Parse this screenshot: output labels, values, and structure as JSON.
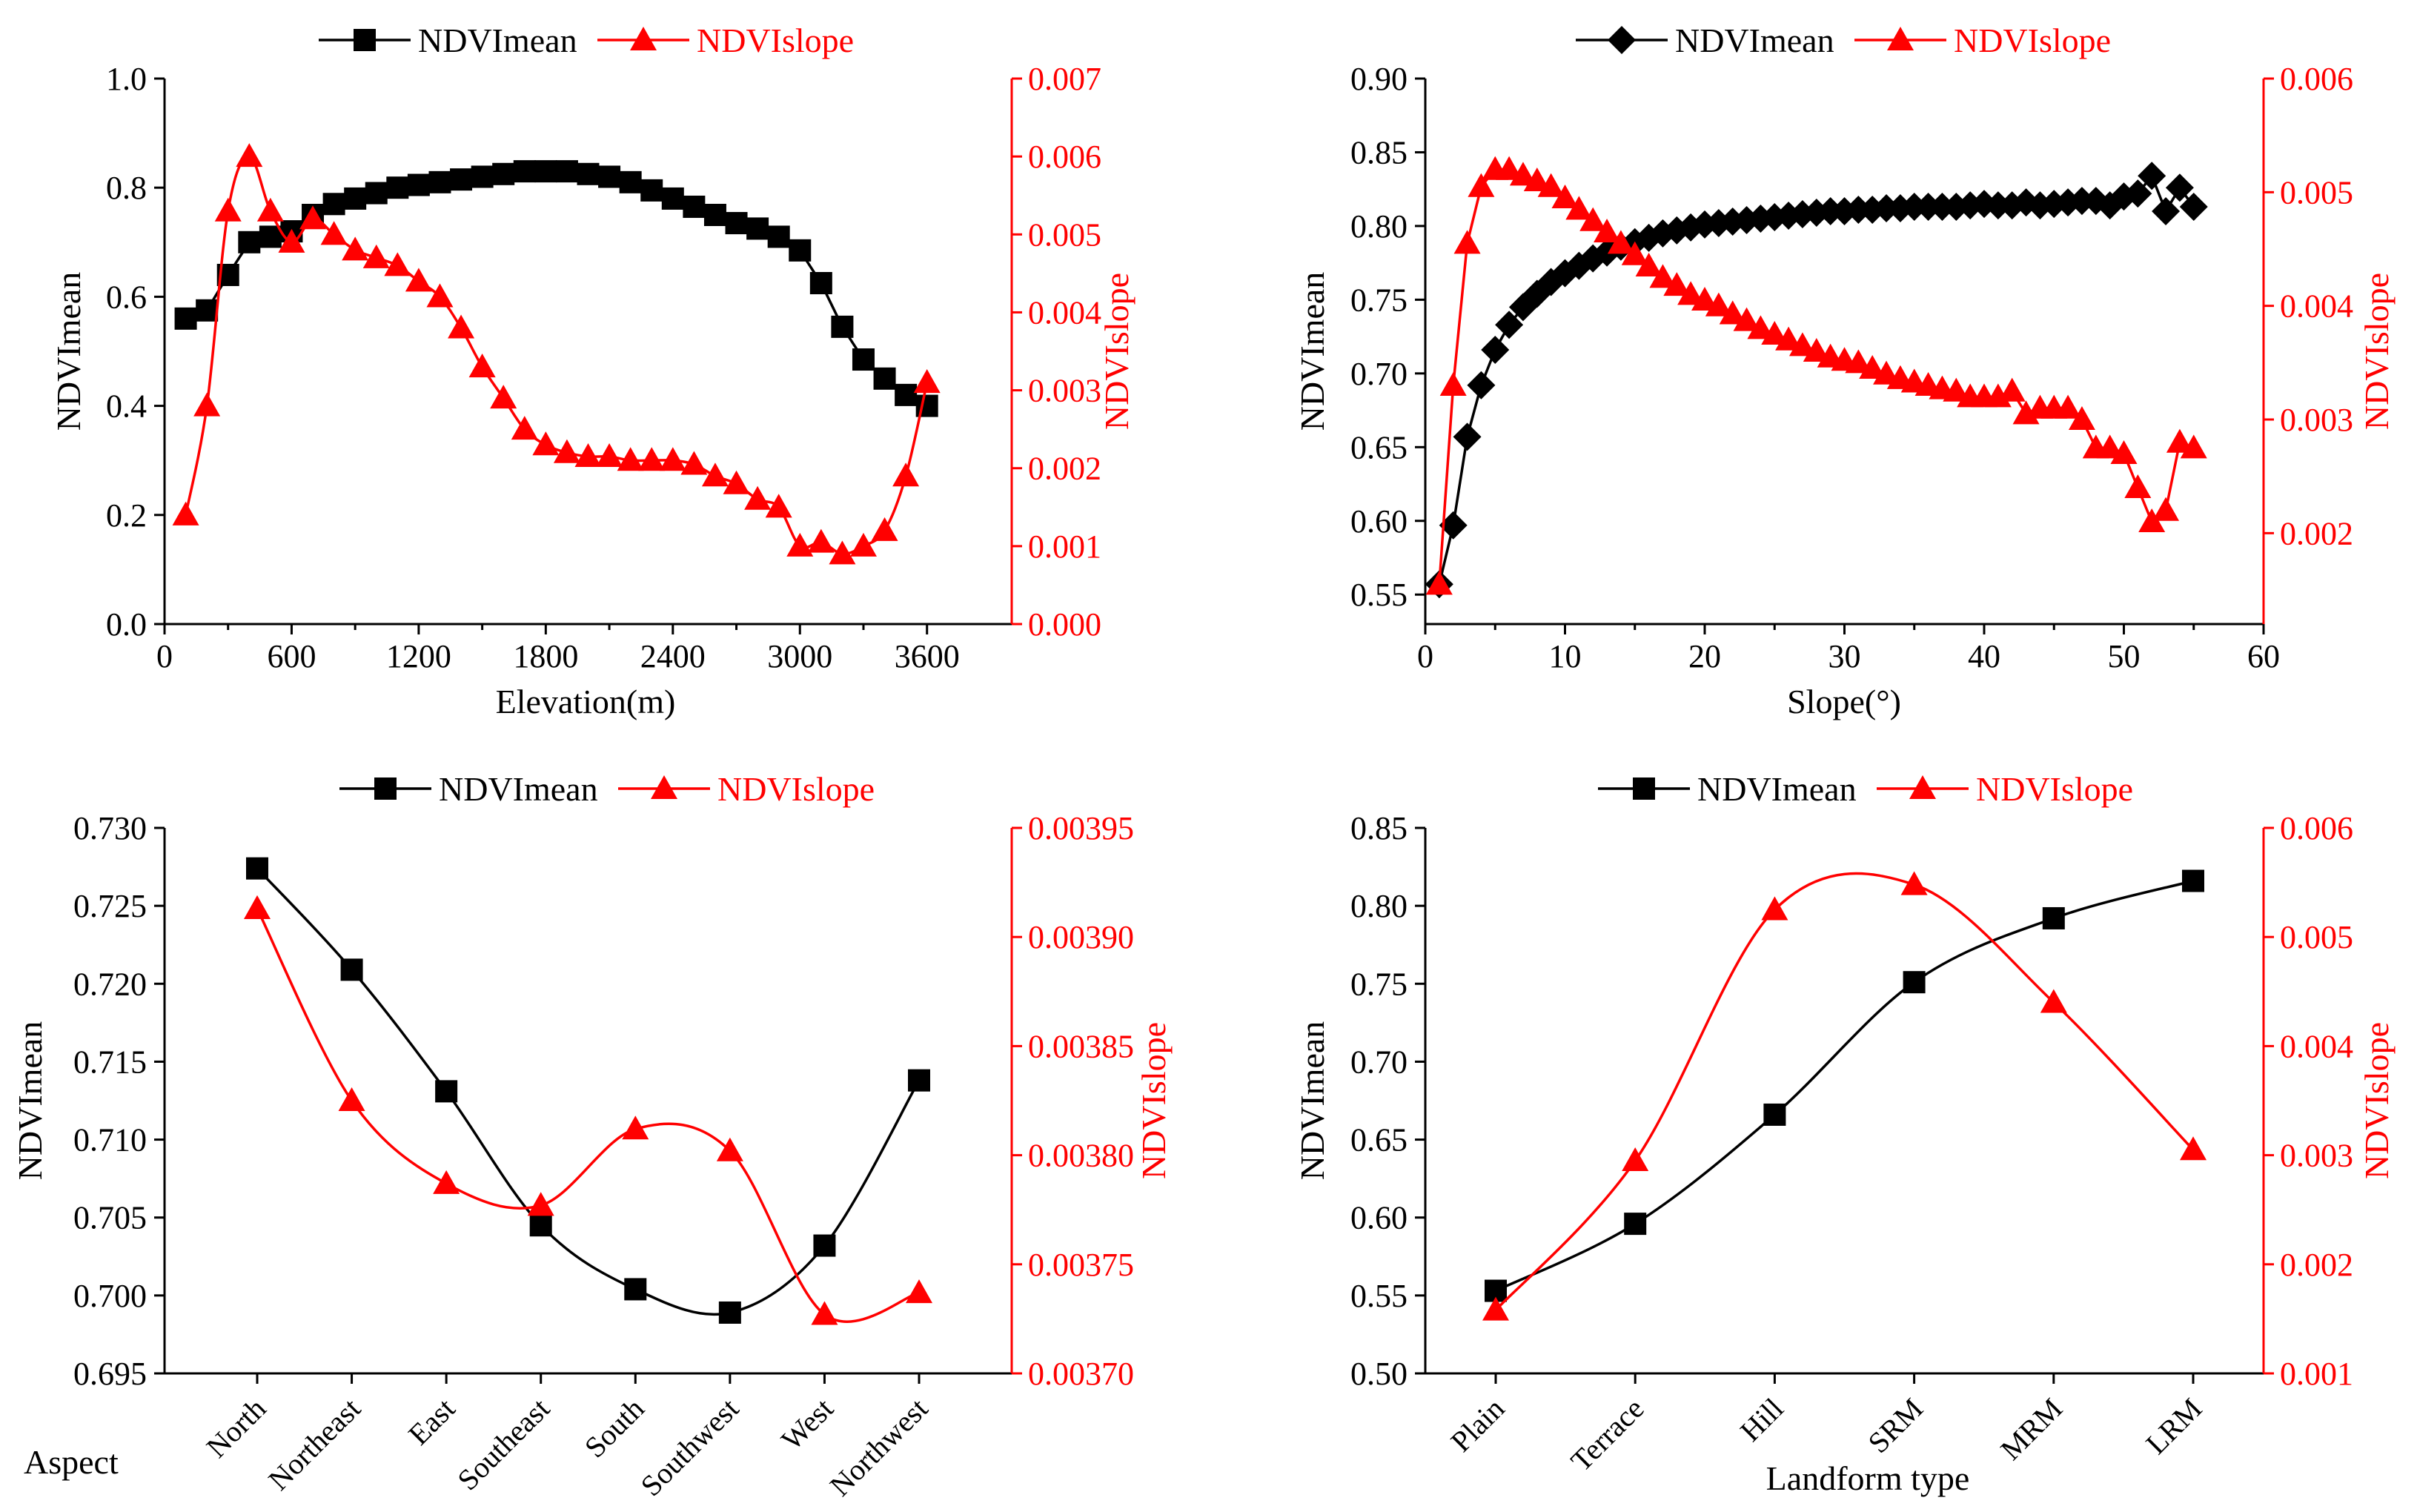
{
  "colors": {
    "mean": "#000000",
    "slope": "#ff0000",
    "axis": "#000000"
  },
  "chart_data": [
    {
      "id": "elevation",
      "type": "line",
      "xlabel": "Elevation(m)",
      "ylabel_left": "NDVImean",
      "ylabel_right": "NDVIslope",
      "x_range": [
        0,
        4000
      ],
      "x_ticks": [
        0,
        600,
        1200,
        1800,
        2400,
        3000,
        3600
      ],
      "y_left_range": [
        0,
        1.0
      ],
      "y_left_ticks": [
        "0.0",
        "0.2",
        "0.4",
        "0.6",
        "0.8",
        "1.0"
      ],
      "y_right_range": [
        0,
        0.007
      ],
      "y_right_ticks": [
        "0.000",
        "0.001",
        "0.002",
        "0.003",
        "0.004",
        "0.005",
        "0.006",
        "0.007"
      ],
      "legend": [
        {
          "name": "NDVImean",
          "marker": "square"
        },
        {
          "name": "NDVIslope",
          "marker": "triangle"
        }
      ],
      "series": [
        {
          "name": "NDVImean",
          "axis": "left",
          "marker": "square",
          "curve": "linear",
          "x": [
            100,
            200,
            300,
            400,
            500,
            600,
            700,
            800,
            900,
            1000,
            1100,
            1200,
            1300,
            1400,
            1500,
            1600,
            1700,
            1800,
            1900,
            2000,
            2100,
            2200,
            2300,
            2400,
            2500,
            2600,
            2700,
            2800,
            2900,
            3000,
            3100,
            3200,
            3300,
            3400,
            3500,
            3600
          ],
          "values": [
            0.56,
            0.575,
            0.64,
            0.7,
            0.71,
            0.72,
            0.75,
            0.77,
            0.78,
            0.79,
            0.8,
            0.805,
            0.81,
            0.815,
            0.82,
            0.825,
            0.83,
            0.83,
            0.83,
            0.825,
            0.82,
            0.81,
            0.795,
            0.78,
            0.765,
            0.75,
            0.735,
            0.725,
            0.71,
            0.685,
            0.625,
            0.545,
            0.485,
            0.45,
            0.42,
            0.4
          ]
        },
        {
          "name": "NDVIslope",
          "axis": "right",
          "marker": "triangle",
          "curve": "smooth",
          "x": [
            100,
            200,
            300,
            400,
            500,
            600,
            700,
            800,
            900,
            1000,
            1100,
            1200,
            1300,
            1400,
            1500,
            1600,
            1700,
            1800,
            1900,
            2000,
            2100,
            2200,
            2300,
            2400,
            2500,
            2600,
            2700,
            2800,
            2900,
            3000,
            3100,
            3200,
            3300,
            3400,
            3500,
            3600
          ],
          "values": [
            0.0014,
            0.0028,
            0.0053,
            0.006,
            0.0053,
            0.0049,
            0.0052,
            0.005,
            0.0048,
            0.0047,
            0.0046,
            0.0044,
            0.0042,
            0.0038,
            0.0033,
            0.0029,
            0.0025,
            0.0023,
            0.0022,
            0.00215,
            0.00215,
            0.0021,
            0.0021,
            0.0021,
            0.00205,
            0.0019,
            0.0018,
            0.0016,
            0.0015,
            0.001,
            0.00105,
            0.0009,
            0.001,
            0.0012,
            0.0019,
            0.0031
          ]
        }
      ]
    },
    {
      "id": "slope",
      "type": "line",
      "xlabel": "Slope(°)",
      "ylabel_left": "NDVImean",
      "ylabel_right": "NDVIslope",
      "x_range": [
        0,
        60
      ],
      "x_ticks": [
        0,
        10,
        20,
        30,
        40,
        50,
        60
      ],
      "y_left_range": [
        0.53,
        0.9
      ],
      "y_left_ticks": [
        "0.55",
        "0.60",
        "0.65",
        "0.70",
        "0.75",
        "0.80",
        "0.85",
        "0.90"
      ],
      "y_right_range": [
        0.0012,
        0.006
      ],
      "y_right_ticks": [
        "0.002",
        "0.003",
        "0.004",
        "0.005",
        "0.006"
      ],
      "legend": [
        {
          "name": "NDVImean",
          "marker": "diamond"
        },
        {
          "name": "NDVIslope",
          "marker": "triangle"
        }
      ],
      "series": [
        {
          "name": "NDVImean",
          "axis": "left",
          "marker": "diamond",
          "curve": "linear",
          "x": [
            1,
            2,
            3,
            4,
            5,
            6,
            7,
            8,
            9,
            10,
            11,
            12,
            13,
            14,
            15,
            16,
            17,
            18,
            19,
            20,
            21,
            22,
            23,
            24,
            25,
            26,
            27,
            28,
            29,
            30,
            31,
            32,
            33,
            34,
            35,
            36,
            37,
            38,
            39,
            40,
            41,
            42,
            43,
            44,
            45,
            46,
            47,
            48,
            49,
            50,
            51,
            52,
            53,
            54,
            55
          ],
          "values": [
            0.557,
            0.597,
            0.657,
            0.692,
            0.716,
            0.733,
            0.745,
            0.754,
            0.762,
            0.768,
            0.773,
            0.778,
            0.782,
            0.786,
            0.789,
            0.792,
            0.795,
            0.797,
            0.799,
            0.801,
            0.802,
            0.803,
            0.804,
            0.805,
            0.806,
            0.807,
            0.808,
            0.809,
            0.81,
            0.81,
            0.811,
            0.811,
            0.812,
            0.812,
            0.813,
            0.813,
            0.813,
            0.813,
            0.814,
            0.815,
            0.814,
            0.814,
            0.816,
            0.814,
            0.815,
            0.816,
            0.817,
            0.817,
            0.814,
            0.82,
            0.822,
            0.834,
            0.81,
            0.826,
            0.813
          ]
        },
        {
          "name": "NDVIslope",
          "axis": "right",
          "marker": "triangle",
          "curve": "linear",
          "x": [
            1,
            2,
            3,
            4,
            5,
            6,
            7,
            8,
            9,
            10,
            11,
            12,
            13,
            14,
            15,
            16,
            17,
            18,
            19,
            20,
            21,
            22,
            23,
            24,
            25,
            26,
            27,
            28,
            29,
            30,
            31,
            32,
            33,
            34,
            35,
            36,
            37,
            38,
            39,
            40,
            41,
            42,
            43,
            44,
            45,
            46,
            47,
            48,
            49,
            50,
            51,
            52,
            53,
            54,
            55
          ],
          "values": [
            0.00155,
            0.0033,
            0.00455,
            0.00505,
            0.0052,
            0.0052,
            0.00515,
            0.0051,
            0.00505,
            0.00495,
            0.00485,
            0.00475,
            0.00465,
            0.00455,
            0.00445,
            0.00435,
            0.00425,
            0.00418,
            0.0041,
            0.00405,
            0.004,
            0.00393,
            0.00387,
            0.0038,
            0.00375,
            0.0037,
            0.00365,
            0.0036,
            0.00355,
            0.00352,
            0.0035,
            0.00345,
            0.0034,
            0.00336,
            0.00333,
            0.0033,
            0.00327,
            0.00325,
            0.0032,
            0.0032,
            0.0032,
            0.00325,
            0.00305,
            0.0031,
            0.0031,
            0.0031,
            0.003,
            0.00275,
            0.00275,
            0.0027,
            0.0024,
            0.0021,
            0.0022,
            0.0028,
            0.00275
          ]
        }
      ]
    },
    {
      "id": "aspect",
      "type": "line",
      "xlabel": "Aspect",
      "ylabel_left": "NDVImean",
      "ylabel_right": "NDVIslope",
      "categories": [
        "North",
        "Northeast",
        "East",
        "Southeast",
        "South",
        "Southwest",
        "West",
        "Northwest"
      ],
      "y_left_range": [
        0.695,
        0.73
      ],
      "y_left_ticks": [
        "0.695",
        "0.700",
        "0.705",
        "0.710",
        "0.715",
        "0.720",
        "0.725",
        "0.730"
      ],
      "y_right_range": [
        0.0037,
        0.00395
      ],
      "y_right_ticks": [
        "0.00370",
        "0.00375",
        "0.00380",
        "0.00385",
        "0.00390",
        "0.00395"
      ],
      "legend": [
        {
          "name": "NDVImean",
          "marker": "square"
        },
        {
          "name": "NDVIslope",
          "marker": "triangle"
        }
      ],
      "series": [
        {
          "name": "NDVImean",
          "axis": "left",
          "marker": "square",
          "curve": "smooth",
          "values": [
            0.7274,
            0.7209,
            0.7131,
            0.7045,
            0.7004,
            0.6989,
            0.7032,
            0.7138
          ]
        },
        {
          "name": "NDVIslope",
          "axis": "right",
          "marker": "triangle",
          "curve": "smooth",
          "values": [
            0.003913,
            0.003825,
            0.003787,
            0.003777,
            0.003812,
            0.003802,
            0.003727,
            0.003737
          ]
        }
      ]
    },
    {
      "id": "landform",
      "type": "line",
      "xlabel": "Landform type",
      "ylabel_left": "NDVImean",
      "ylabel_right": "NDVIslope",
      "categories": [
        "Plain",
        "Terrace",
        "Hill",
        "SRM",
        "MRM",
        "LRM"
      ],
      "y_left_range": [
        0.5,
        0.85
      ],
      "y_left_ticks": [
        "0.50",
        "0.55",
        "0.60",
        "0.65",
        "0.70",
        "0.75",
        "0.80",
        "0.85"
      ],
      "y_right_range": [
        0.001,
        0.006
      ],
      "y_right_ticks": [
        "0.001",
        "0.002",
        "0.003",
        "0.004",
        "0.005",
        "0.006"
      ],
      "legend": [
        {
          "name": "NDVImean",
          "marker": "square"
        },
        {
          "name": "NDVIslope",
          "marker": "triangle"
        }
      ],
      "series": [
        {
          "name": "NDVImean",
          "axis": "left",
          "marker": "square",
          "curve": "smooth",
          "values": [
            0.553,
            0.596,
            0.666,
            0.751,
            0.792,
            0.816
          ]
        },
        {
          "name": "NDVIslope",
          "axis": "right",
          "marker": "triangle",
          "curve": "smooth",
          "values": [
            0.00158,
            0.00295,
            0.00525,
            0.00548,
            0.0044,
            0.00305
          ]
        }
      ]
    }
  ]
}
